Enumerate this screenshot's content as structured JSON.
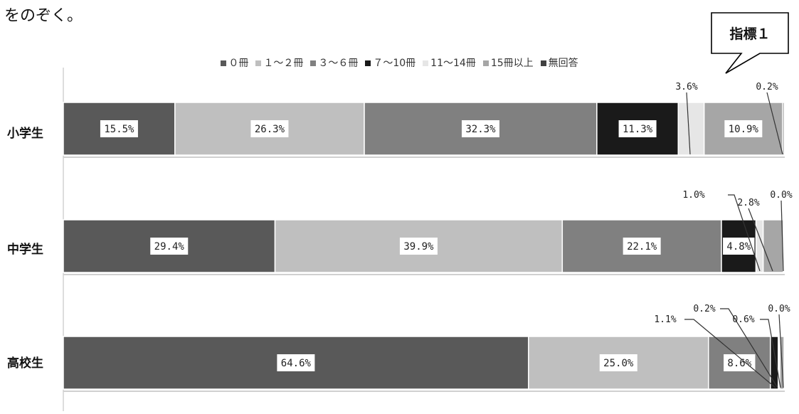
{
  "header_text": "をのぞく。",
  "callout_label": "指標１",
  "chart_data": {
    "type": "bar",
    "orientation": "horizontal",
    "stacked": true,
    "normalized": true,
    "categories": [
      "小学生",
      "中学生",
      "高校生"
    ],
    "series": [
      {
        "name": "０冊",
        "color": "#595959",
        "values": [
          15.5,
          29.4,
          64.6
        ]
      },
      {
        "name": "１～２冊",
        "color": "#bfbfbf",
        "values": [
          26.3,
          39.9,
          25.0
        ]
      },
      {
        "name": "３～６冊",
        "color": "#808080",
        "values": [
          32.3,
          22.1,
          8.6
        ]
      },
      {
        "name": "７～10冊",
        "color": "#1a1a1a",
        "values": [
          11.3,
          4.8,
          1.1
        ]
      },
      {
        "name": "11～14冊",
        "color": "#e6e6e6",
        "values": [
          3.6,
          1.0,
          0.2
        ]
      },
      {
        "name": "15冊以上",
        "color": "#a6a6a6",
        "values": [
          10.9,
          2.8,
          0.6
        ]
      },
      {
        "name": "無回答",
        "color": "#404040",
        "values": [
          0.2,
          0.0,
          0.0
        ]
      }
    ],
    "data_labels": [
      [
        "15.5%",
        "26.3%",
        "32.3%",
        "11.3%",
        "3.6%",
        "10.9%",
        "0.2%"
      ],
      [
        "29.4%",
        "39.9%",
        "22.1%",
        "4.8%",
        "1.0%",
        "2.8%",
        "0.0%"
      ],
      [
        "64.6%",
        "25.0%",
        "8.6%",
        "1.1%",
        "0.2%",
        "0.6%",
        "0.0%"
      ]
    ],
    "legend_position": "top",
    "xlim": [
      0,
      100
    ]
  }
}
